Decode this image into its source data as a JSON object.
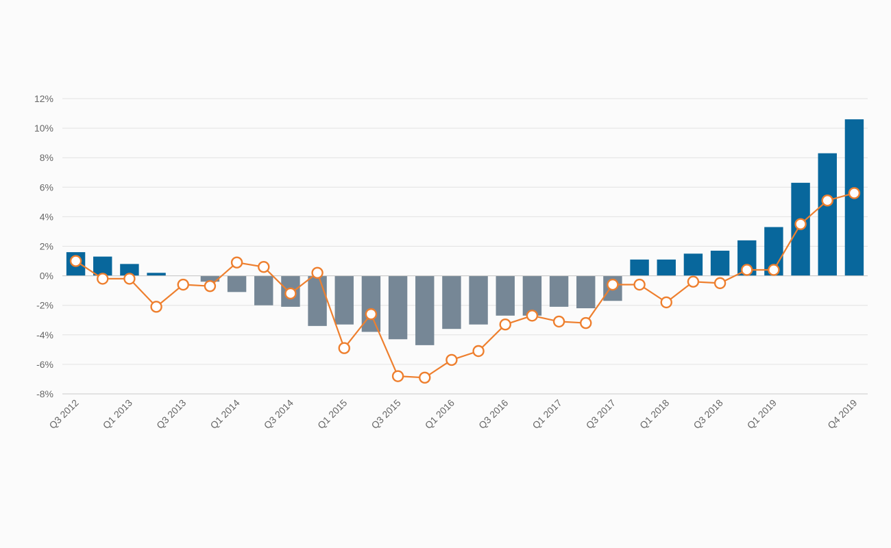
{
  "chart_data": {
    "type": "bar+line",
    "x": [
      "Q3 2012",
      "Q4 2012",
      "Q1 2013",
      "Q2 2013",
      "Q3 2013",
      "Q4 2013",
      "Q1 2014",
      "Q2 2014",
      "Q3 2014",
      "Q4 2014",
      "Q1 2015",
      "Q2 2015",
      "Q3 2015",
      "Q4 2015",
      "Q1 2016",
      "Q2 2016",
      "Q3 2016",
      "Q4 2016",
      "Q1 2017",
      "Q2 2017",
      "Q3 2017",
      "Q4 2017",
      "Q1 2018",
      "Q2 2018",
      "Q3 2018",
      "Q4 2018",
      "Q1 2019",
      "Q2 2019",
      "Q3 2019",
      "Q4 2019"
    ],
    "tick_labels": [
      "Q3 2012",
      "",
      "Q1 2013",
      "",
      "Q3 2013",
      "",
      "Q1 2014",
      "",
      "Q3 2014",
      "",
      "Q1 2015",
      "",
      "Q3 2015",
      "",
      "Q1 2016",
      "",
      "Q3 2016",
      "",
      "Q1 2017",
      "",
      "Q3 2017",
      "",
      "Q1 2018",
      "",
      "Q3 2018",
      "",
      "Q1 2019",
      "",
      "",
      "Q4 2019"
    ],
    "series": [
      {
        "kind": "bar",
        "values": [
          1.6,
          1.3,
          0.8,
          0.2,
          0.0,
          -0.4,
          -1.1,
          -2.0,
          -2.1,
          -3.4,
          -3.3,
          -3.8,
          -4.3,
          -4.7,
          -3.6,
          -3.3,
          -2.7,
          -2.7,
          -2.1,
          -2.2,
          -1.7,
          1.1,
          1.1,
          1.5,
          1.7,
          2.4,
          3.3,
          6.3,
          8.3,
          10.6
        ],
        "positive_color": "#08679c",
        "negative_color": "#768796"
      },
      {
        "kind": "line",
        "values": [
          1.0,
          -0.2,
          -0.2,
          -2.1,
          -0.6,
          -0.7,
          0.9,
          0.6,
          -1.2,
          0.2,
          -4.9,
          -2.6,
          -6.8,
          -6.9,
          -5.7,
          -5.1,
          -3.3,
          -2.7,
          -3.1,
          -3.2,
          -0.6,
          -0.6,
          -1.8,
          -0.4,
          -0.5,
          0.4,
          0.4,
          3.5,
          5.1,
          5.6
        ],
        "color": "#ee7f2e"
      }
    ],
    "ylim": [
      -8,
      12
    ],
    "yticks": [
      12,
      10,
      8,
      6,
      4,
      2,
      0,
      -2,
      -4,
      -6,
      -8
    ],
    "ytick_labels": [
      "12%",
      "10%",
      "8%",
      "6%",
      "4%",
      "2%",
      "0%",
      "-2%",
      "-4%",
      "-6%",
      "-8%"
    ],
    "grid": true,
    "legend": "none"
  }
}
